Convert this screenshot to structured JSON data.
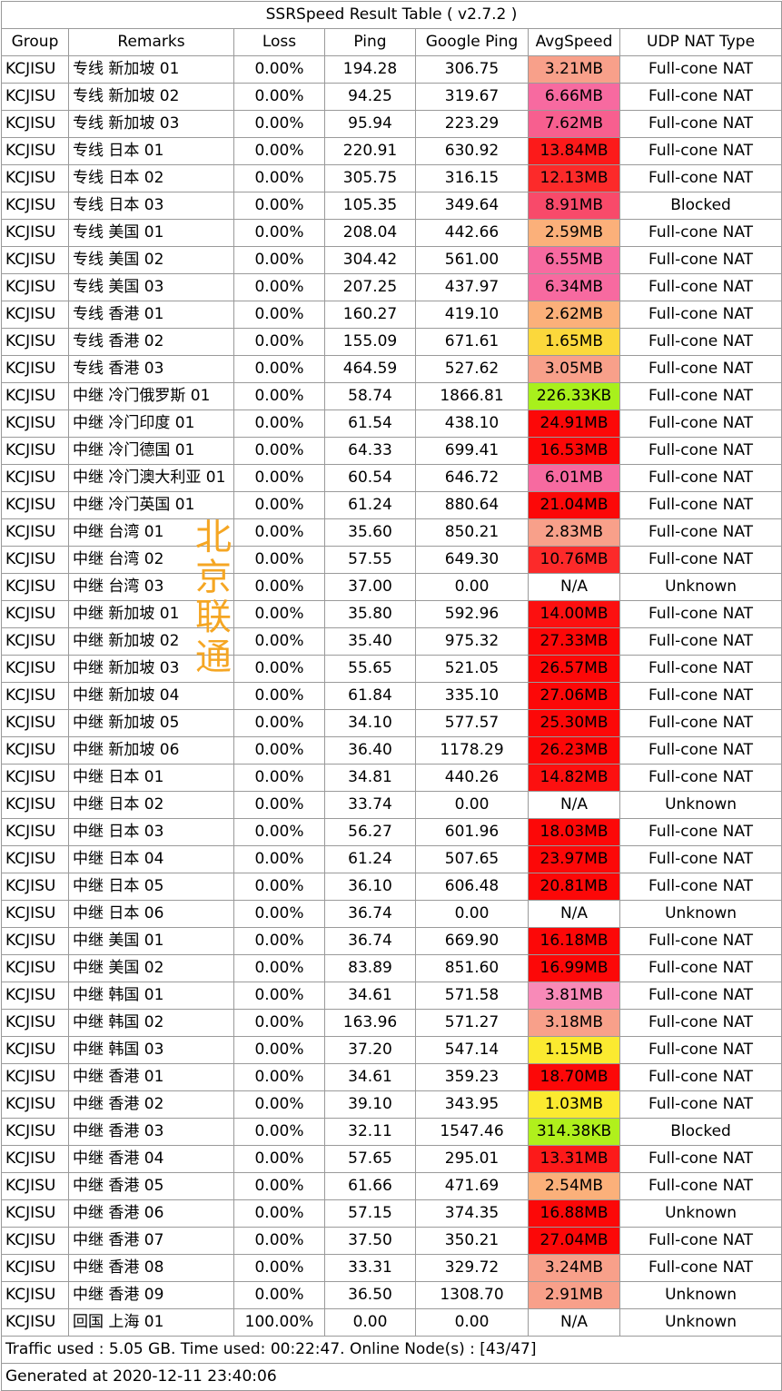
{
  "title": "SSRSpeed Result Table ( v2.7.2 )",
  "headers": [
    "Group",
    "Remarks",
    "Loss",
    "Ping",
    "Google Ping",
    "AvgSpeed",
    "UDP NAT Type"
  ],
  "rows": [
    {
      "group": "KCJISU",
      "remarks": "专线 新加坡 01",
      "loss": "0.00%",
      "ping": "194.28",
      "gping": "306.75",
      "speed": "3.21MB",
      "speed_color": "#f8a08a",
      "nat": "Full-cone NAT"
    },
    {
      "group": "KCJISU",
      "remarks": "专线 新加坡 02",
      "loss": "0.00%",
      "ping": "94.25",
      "gping": "319.67",
      "speed": "6.66MB",
      "speed_color": "#f76aa0",
      "nat": "Full-cone NAT"
    },
    {
      "group": "KCJISU",
      "remarks": "专线 新加坡 03",
      "loss": "0.00%",
      "ping": "95.94",
      "gping": "223.29",
      "speed": "7.62MB",
      "speed_color": "#f75f8f",
      "nat": "Full-cone NAT"
    },
    {
      "group": "KCJISU",
      "remarks": "专线 日本 01",
      "loss": "0.00%",
      "ping": "220.91",
      "gping": "630.92",
      "speed": "13.84MB",
      "speed_color": "#fc1a1a",
      "nat": "Full-cone NAT"
    },
    {
      "group": "KCJISU",
      "remarks": "专线 日本 02",
      "loss": "0.00%",
      "ping": "305.75",
      "gping": "316.15",
      "speed": "12.13MB",
      "speed_color": "#fc2a2a",
      "nat": "Full-cone NAT"
    },
    {
      "group": "KCJISU",
      "remarks": "专线 日本 03",
      "loss": "0.00%",
      "ping": "105.35",
      "gping": "349.64",
      "speed": "8.91MB",
      "speed_color": "#f84a6a",
      "nat": "Blocked"
    },
    {
      "group": "KCJISU",
      "remarks": "专线 美国 01",
      "loss": "0.00%",
      "ping": "208.04",
      "gping": "442.66",
      "speed": "2.59MB",
      "speed_color": "#fbb07a",
      "nat": "Full-cone NAT"
    },
    {
      "group": "KCJISU",
      "remarks": "专线 美国 02",
      "loss": "0.00%",
      "ping": "304.42",
      "gping": "561.00",
      "speed": "6.55MB",
      "speed_color": "#f76aa0",
      "nat": "Full-cone NAT"
    },
    {
      "group": "KCJISU",
      "remarks": "专线 美国 03",
      "loss": "0.00%",
      "ping": "207.25",
      "gping": "437.97",
      "speed": "6.34MB",
      "speed_color": "#f76aa0",
      "nat": "Full-cone NAT"
    },
    {
      "group": "KCJISU",
      "remarks": "专线 香港 01",
      "loss": "0.00%",
      "ping": "160.27",
      "gping": "419.10",
      "speed": "2.62MB",
      "speed_color": "#fbb07a",
      "nat": "Full-cone NAT"
    },
    {
      "group": "KCJISU",
      "remarks": "专线 香港 02",
      "loss": "0.00%",
      "ping": "155.09",
      "gping": "671.61",
      "speed": "1.65MB",
      "speed_color": "#fbd83c",
      "nat": "Full-cone NAT"
    },
    {
      "group": "KCJISU",
      "remarks": "专线 香港 03",
      "loss": "0.00%",
      "ping": "464.59",
      "gping": "527.62",
      "speed": "3.05MB",
      "speed_color": "#f8a08a",
      "nat": "Full-cone NAT"
    },
    {
      "group": "KCJISU",
      "remarks": "中继 冷门俄罗斯 01",
      "loss": "0.00%",
      "ping": "58.74",
      "gping": "1866.81",
      "speed": "226.33KB",
      "speed_color": "#a8f01c",
      "nat": "Full-cone NAT"
    },
    {
      "group": "KCJISU",
      "remarks": "中继 冷门印度 01",
      "loss": "0.00%",
      "ping": "61.54",
      "gping": "438.10",
      "speed": "24.91MB",
      "speed_color": "#fc0808",
      "nat": "Full-cone NAT"
    },
    {
      "group": "KCJISU",
      "remarks": "中继 冷门德国 01",
      "loss": "0.00%",
      "ping": "64.33",
      "gping": "699.41",
      "speed": "16.53MB",
      "speed_color": "#fc0808",
      "nat": "Full-cone NAT"
    },
    {
      "group": "KCJISU",
      "remarks": "中继 冷门澳大利亚 01",
      "loss": "0.00%",
      "ping": "60.54",
      "gping": "646.72",
      "speed": "6.01MB",
      "speed_color": "#f76aa0",
      "nat": "Full-cone NAT"
    },
    {
      "group": "KCJISU",
      "remarks": "中继 冷门英国 01",
      "loss": "0.00%",
      "ping": "61.24",
      "gping": "880.64",
      "speed": "21.04MB",
      "speed_color": "#fc0808",
      "nat": "Full-cone NAT"
    },
    {
      "group": "KCJISU",
      "remarks": "中继 台湾 01",
      "loss": "0.00%",
      "ping": "35.60",
      "gping": "850.21",
      "speed": "2.83MB",
      "speed_color": "#f8a08a",
      "nat": "Full-cone NAT"
    },
    {
      "group": "KCJISU",
      "remarks": "中继 台湾 02",
      "loss": "0.00%",
      "ping": "57.55",
      "gping": "649.30",
      "speed": "10.76MB",
      "speed_color": "#fc2a2a",
      "nat": "Full-cone NAT"
    },
    {
      "group": "KCJISU",
      "remarks": "中继 台湾 03",
      "loss": "0.00%",
      "ping": "37.00",
      "gping": "0.00",
      "speed": "N/A",
      "speed_color": "#ffffff",
      "nat": "Unknown"
    },
    {
      "group": "KCJISU",
      "remarks": "中继 新加坡 01",
      "loss": "0.00%",
      "ping": "35.80",
      "gping": "592.96",
      "speed": "14.00MB",
      "speed_color": "#fc1010",
      "nat": "Full-cone NAT"
    },
    {
      "group": "KCJISU",
      "remarks": "中继 新加坡 02",
      "loss": "0.00%",
      "ping": "35.40",
      "gping": "975.32",
      "speed": "27.33MB",
      "speed_color": "#fc0808",
      "nat": "Full-cone NAT"
    },
    {
      "group": "KCJISU",
      "remarks": "中继 新加坡 03",
      "loss": "0.00%",
      "ping": "55.65",
      "gping": "521.05",
      "speed": "26.57MB",
      "speed_color": "#fc0808",
      "nat": "Full-cone NAT"
    },
    {
      "group": "KCJISU",
      "remarks": "中继 新加坡 04",
      "loss": "0.00%",
      "ping": "61.84",
      "gping": "335.10",
      "speed": "27.06MB",
      "speed_color": "#fc0808",
      "nat": "Full-cone NAT"
    },
    {
      "group": "KCJISU",
      "remarks": "中继 新加坡 05",
      "loss": "0.00%",
      "ping": "34.10",
      "gping": "577.57",
      "speed": "25.30MB",
      "speed_color": "#fc0808",
      "nat": "Full-cone NAT"
    },
    {
      "group": "KCJISU",
      "remarks": "中继 新加坡 06",
      "loss": "0.00%",
      "ping": "36.40",
      "gping": "1178.29",
      "speed": "26.23MB",
      "speed_color": "#fc0808",
      "nat": "Full-cone NAT"
    },
    {
      "group": "KCJISU",
      "remarks": "中继 日本 01",
      "loss": "0.00%",
      "ping": "34.81",
      "gping": "440.26",
      "speed": "14.82MB",
      "speed_color": "#fc1010",
      "nat": "Full-cone NAT"
    },
    {
      "group": "KCJISU",
      "remarks": "中继 日本 02",
      "loss": "0.00%",
      "ping": "33.74",
      "gping": "0.00",
      "speed": "N/A",
      "speed_color": "#ffffff",
      "nat": "Unknown"
    },
    {
      "group": "KCJISU",
      "remarks": "中继 日本 03",
      "loss": "0.00%",
      "ping": "56.27",
      "gping": "601.96",
      "speed": "18.03MB",
      "speed_color": "#fc0808",
      "nat": "Full-cone NAT"
    },
    {
      "group": "KCJISU",
      "remarks": "中继 日本 04",
      "loss": "0.00%",
      "ping": "61.24",
      "gping": "507.65",
      "speed": "23.97MB",
      "speed_color": "#fc0808",
      "nat": "Full-cone NAT"
    },
    {
      "group": "KCJISU",
      "remarks": "中继 日本 05",
      "loss": "0.00%",
      "ping": "36.10",
      "gping": "606.48",
      "speed": "20.81MB",
      "speed_color": "#fc0808",
      "nat": "Full-cone NAT"
    },
    {
      "group": "KCJISU",
      "remarks": "中继 日本 06",
      "loss": "0.00%",
      "ping": "36.74",
      "gping": "0.00",
      "speed": "N/A",
      "speed_color": "#ffffff",
      "nat": "Unknown"
    },
    {
      "group": "KCJISU",
      "remarks": "中继 美国 01",
      "loss": "0.00%",
      "ping": "36.74",
      "gping": "669.90",
      "speed": "16.18MB",
      "speed_color": "#fc0808",
      "nat": "Full-cone NAT"
    },
    {
      "group": "KCJISU",
      "remarks": "中继 美国 02",
      "loss": "0.00%",
      "ping": "83.89",
      "gping": "851.60",
      "speed": "16.99MB",
      "speed_color": "#fc0808",
      "nat": "Full-cone NAT"
    },
    {
      "group": "KCJISU",
      "remarks": "中继 韩国 01",
      "loss": "0.00%",
      "ping": "34.61",
      "gping": "571.58",
      "speed": "3.81MB",
      "speed_color": "#f88ab8",
      "nat": "Full-cone NAT"
    },
    {
      "group": "KCJISU",
      "remarks": "中继 韩国 02",
      "loss": "0.00%",
      "ping": "163.96",
      "gping": "571.27",
      "speed": "3.18MB",
      "speed_color": "#f8a08a",
      "nat": "Full-cone NAT"
    },
    {
      "group": "KCJISU",
      "remarks": "中继 韩国 03",
      "loss": "0.00%",
      "ping": "37.20",
      "gping": "547.14",
      "speed": "1.15MB",
      "speed_color": "#fbea30",
      "nat": "Full-cone NAT"
    },
    {
      "group": "KCJISU",
      "remarks": "中继 香港 01",
      "loss": "0.00%",
      "ping": "34.61",
      "gping": "359.23",
      "speed": "18.70MB",
      "speed_color": "#fc0808",
      "nat": "Full-cone NAT"
    },
    {
      "group": "KCJISU",
      "remarks": "中继 香港 02",
      "loss": "0.00%",
      "ping": "39.10",
      "gping": "343.95",
      "speed": "1.03MB",
      "speed_color": "#fbea30",
      "nat": "Full-cone NAT"
    },
    {
      "group": "KCJISU",
      "remarks": "中继 香港 03",
      "loss": "0.00%",
      "ping": "32.11",
      "gping": "1547.46",
      "speed": "314.38KB",
      "speed_color": "#b0f01c",
      "nat": "Blocked"
    },
    {
      "group": "KCJISU",
      "remarks": "中继 香港 04",
      "loss": "0.00%",
      "ping": "57.65",
      "gping": "295.01",
      "speed": "13.31MB",
      "speed_color": "#fc1a1a",
      "nat": "Full-cone NAT"
    },
    {
      "group": "KCJISU",
      "remarks": "中继 香港 05",
      "loss": "0.00%",
      "ping": "61.66",
      "gping": "471.69",
      "speed": "2.54MB",
      "speed_color": "#fbb07a",
      "nat": "Full-cone NAT"
    },
    {
      "group": "KCJISU",
      "remarks": "中继 香港 06",
      "loss": "0.00%",
      "ping": "57.15",
      "gping": "374.35",
      "speed": "16.88MB",
      "speed_color": "#fc0808",
      "nat": "Unknown"
    },
    {
      "group": "KCJISU",
      "remarks": "中继 香港 07",
      "loss": "0.00%",
      "ping": "37.50",
      "gping": "350.21",
      "speed": "27.04MB",
      "speed_color": "#fc0808",
      "nat": "Full-cone NAT"
    },
    {
      "group": "KCJISU",
      "remarks": "中继 香港 08",
      "loss": "0.00%",
      "ping": "33.31",
      "gping": "329.72",
      "speed": "3.24MB",
      "speed_color": "#f8a08a",
      "nat": "Full-cone NAT"
    },
    {
      "group": "KCJISU",
      "remarks": "中继 香港 09",
      "loss": "0.00%",
      "ping": "36.50",
      "gping": "1308.70",
      "speed": "2.91MB",
      "speed_color": "#f8a08a",
      "nat": "Unknown"
    },
    {
      "group": "KCJISU",
      "remarks": "回国 上海 01",
      "loss": "100.00%",
      "ping": "0.00",
      "gping": "0.00",
      "speed": "N/A",
      "speed_color": "#ffffff",
      "nat": "Unknown"
    }
  ],
  "footer": {
    "traffic": "Traffic used : 5.05 GB. Time used: 00:22:47. Online Node(s) : [43/47]",
    "generated": "Generated at 2020-12-11 23:40:06"
  },
  "watermark": [
    "北",
    "京",
    "联",
    "通"
  ],
  "colors": {
    "border": "#9a9a9a",
    "watermark": "#f5a623"
  }
}
